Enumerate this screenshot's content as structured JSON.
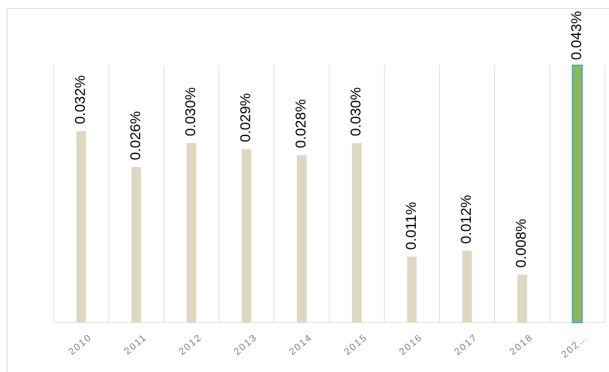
{
  "chart_data": {
    "type": "bar",
    "categories": [
      "2010",
      "2011",
      "2012",
      "2013",
      "2014",
      "2015",
      "2016",
      "2017",
      "2018",
      "202…"
    ],
    "values": [
      0.032,
      0.026,
      0.03,
      0.029,
      0.028,
      0.03,
      0.011,
      0.012,
      0.008,
      0.043
    ],
    "value_labels": [
      "0.032%",
      "0.026%",
      "0.030%",
      "0.029%",
      "0.028%",
      "0.030%",
      "0.011%",
      "0.012%",
      "0.008%",
      "0.043%"
    ],
    "colors": [
      "#ddd8c2",
      "#ddd8c2",
      "#ddd8c2",
      "#ddd8c2",
      "#ddd8c2",
      "#ddd8c2",
      "#ddd8c2",
      "#ddd8c2",
      "#ddd8c2",
      "#8cb85a"
    ],
    "edgecolors": [
      null,
      null,
      null,
      null,
      null,
      null,
      null,
      null,
      null,
      "#4bacc6"
    ],
    "grid": true
  }
}
